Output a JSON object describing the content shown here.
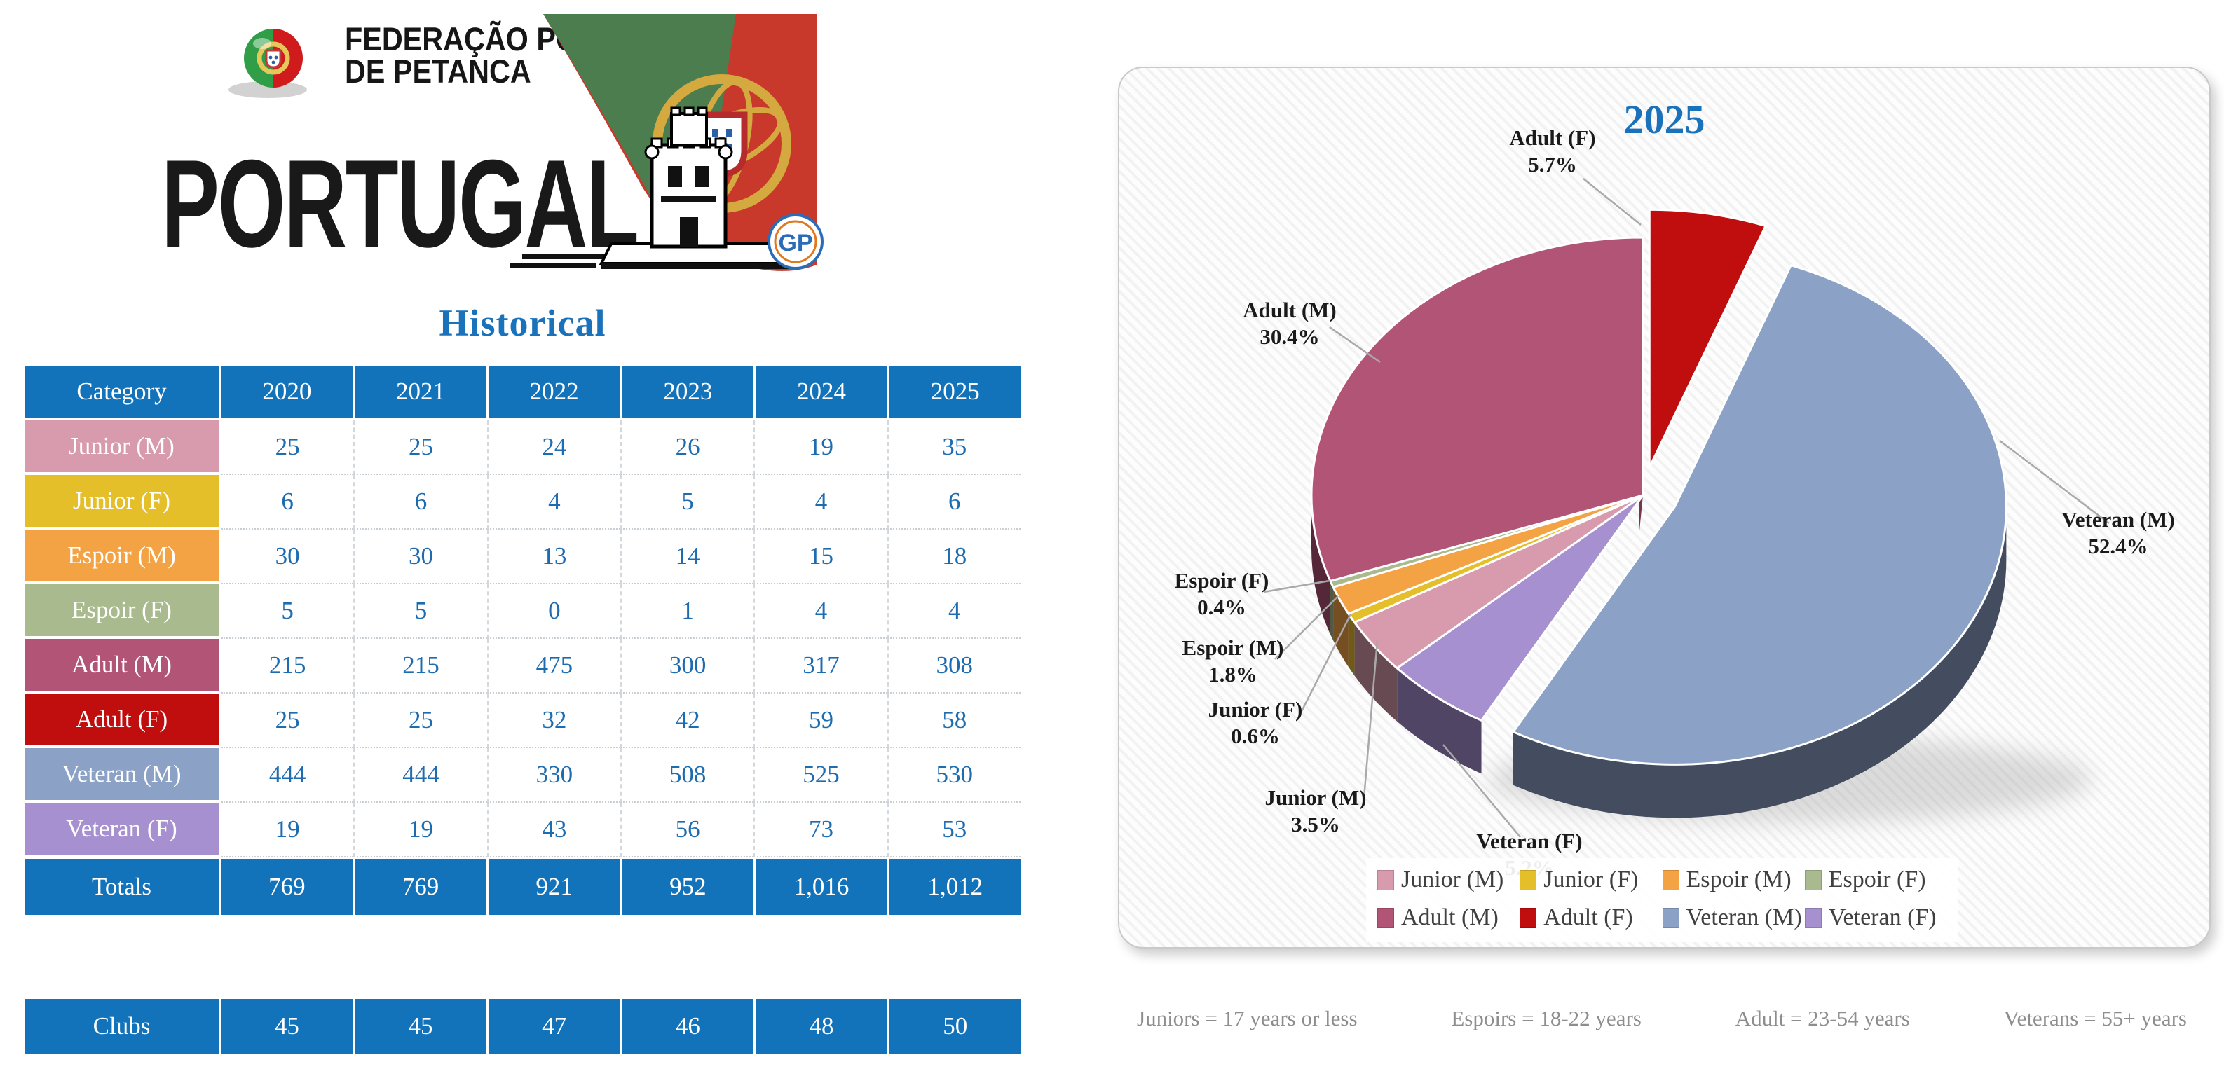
{
  "logo": {
    "federation_line1": "FEDERAÇÃO PORTUGUESA",
    "federation_line2": "DE PETANCA",
    "country": "PORTUGAL",
    "badge_text": "GP"
  },
  "chart_data": [
    {
      "type": "table",
      "title": "Historical",
      "header_color": "#1272ba",
      "number_color": "#1e6cb0",
      "columns": [
        "Category",
        "2020",
        "2021",
        "2022",
        "2023",
        "2024",
        "2025"
      ],
      "rows": [
        {
          "label": "Junior (M)",
          "color": "#d89aad",
          "values": [
            "25",
            "25",
            "24",
            "26",
            "19",
            "35"
          ]
        },
        {
          "label": "Junior (F)",
          "color": "#e5bf2a",
          "values": [
            "6",
            "6",
            "4",
            "5",
            "4",
            "6"
          ]
        },
        {
          "label": "Espoir (M)",
          "color": "#f4a344",
          "values": [
            "30",
            "30",
            "13",
            "14",
            "15",
            "18"
          ]
        },
        {
          "label": "Espoir (F)",
          "color": "#a9ba8e",
          "values": [
            "5",
            "5",
            "0",
            "1",
            "4",
            "4"
          ]
        },
        {
          "label": "Adult (M)",
          "color": "#b25476",
          "values": [
            "215",
            "215",
            "475",
            "300",
            "317",
            "308"
          ]
        },
        {
          "label": "Adult (F)",
          "color": "#c00d0d",
          "values": [
            "25",
            "25",
            "32",
            "42",
            "59",
            "58"
          ]
        },
        {
          "label": "Veteran (M)",
          "color": "#8ba1c6",
          "values": [
            "444",
            "444",
            "330",
            "508",
            "525",
            "530"
          ]
        },
        {
          "label": "Veteran (F)",
          "color": "#a690d0",
          "values": [
            "19",
            "19",
            "43",
            "56",
            "73",
            "53"
          ]
        }
      ],
      "totals": {
        "label": "Totals",
        "values": [
          "769",
          "769",
          "921",
          "952",
          "1,016",
          "1,012"
        ]
      },
      "clubs": {
        "label": "Clubs",
        "values": [
          "45",
          "45",
          "47",
          "46",
          "48",
          "50"
        ]
      }
    },
    {
      "type": "pie",
      "effect": "3d-exploded",
      "title": "2025",
      "title_color": "#1a72bb",
      "legend_position": "bottom-inside",
      "slices": [
        {
          "name": "Junior (M)",
          "value": 35,
          "pct": "3.5%",
          "color": "#d89aad"
        },
        {
          "name": "Junior (F)",
          "value": 6,
          "pct": "0.6%",
          "color": "#e5bf2a"
        },
        {
          "name": "Espoir (M)",
          "value": 18,
          "pct": "1.8%",
          "color": "#f4a344"
        },
        {
          "name": "Espoir (F)",
          "value": 4,
          "pct": "0.4%",
          "color": "#a9ba8e"
        },
        {
          "name": "Adult (M)",
          "value": 308,
          "pct": "30.4%",
          "color": "#b25476"
        },
        {
          "name": "Adult (F)",
          "value": 58,
          "pct": "5.7%",
          "color": "#c00d0d"
        },
        {
          "name": "Veteran (M)",
          "value": 530,
          "pct": "52.4%",
          "color": "#8ba1c6"
        },
        {
          "name": "Veteran (F)",
          "value": 53,
          "pct": "5.2%",
          "color": "#a690d0"
        }
      ],
      "draw_order": [
        "Adult (F)",
        "Veteran (M)",
        "Veteran (F)",
        "Junior (M)",
        "Junior (F)",
        "Espoir (M)",
        "Espoir (F)",
        "Adult (M)"
      ],
      "start_angle_deg": 0,
      "explode": {
        "Adult (F)": 52,
        "Veteran (M)": 50
      }
    }
  ],
  "footer": {
    "notes": [
      "Juniors = 17 years or less",
      "Espoirs = 18-22 years",
      "Adult = 23-54 years",
      "Veterans = 55+ years"
    ]
  }
}
